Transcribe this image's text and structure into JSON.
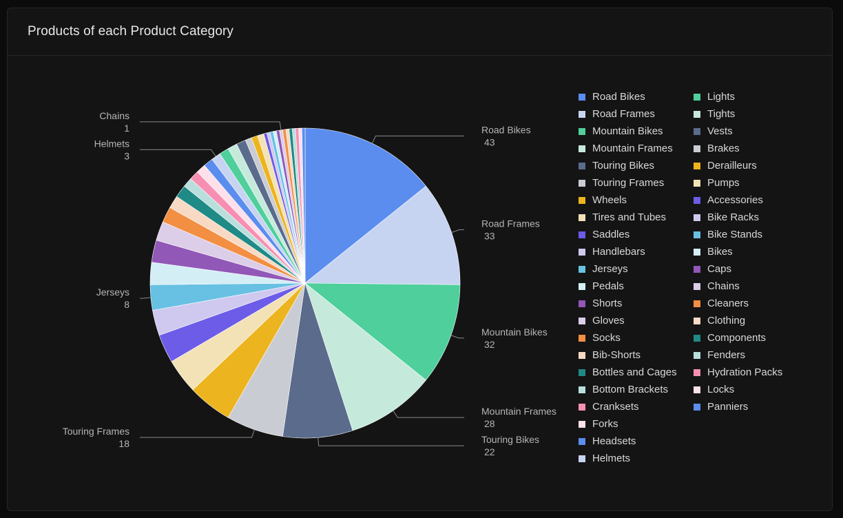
{
  "card": {
    "title": "Products of each Product Category"
  },
  "chart_data": {
    "type": "pie",
    "title": "Products of each Product Category",
    "slices": [
      {
        "label": "Road Bikes",
        "value": 43,
        "color": "#5b8def"
      },
      {
        "label": "Road Frames",
        "value": 33,
        "color": "#c7d4f1"
      },
      {
        "label": "Mountain Bikes",
        "value": 32,
        "color": "#4fcf9c"
      },
      {
        "label": "Mountain Frames",
        "value": 28,
        "color": "#c5eadb"
      },
      {
        "label": "Touring Bikes",
        "value": 22,
        "color": "#5a6b8c"
      },
      {
        "label": "Touring Frames",
        "value": 18,
        "color": "#c9ccd3"
      },
      {
        "label": "Wheels",
        "value": 14,
        "color": "#ecb41f"
      },
      {
        "label": "Tires and Tubes",
        "value": 11,
        "color": "#f2e2b5"
      },
      {
        "label": "Saddles",
        "value": 9,
        "color": "#6c5ce7"
      },
      {
        "label": "Handlebars",
        "value": 8,
        "color": "#cfc9f0"
      },
      {
        "label": "Jerseys",
        "value": 8,
        "color": "#68c1e3"
      },
      {
        "label": "Pedals",
        "value": 7,
        "color": "#d4eef6"
      },
      {
        "label": "Shorts",
        "value": 7,
        "color": "#9158b8"
      },
      {
        "label": "Gloves",
        "value": 6,
        "color": "#dccde8"
      },
      {
        "label": "Socks",
        "value": 5,
        "color": "#f28f43"
      },
      {
        "label": "Bib-Shorts",
        "value": 4,
        "color": "#f7d9c4"
      },
      {
        "label": "Bottles and Cages",
        "value": 4,
        "color": "#1f8a86"
      },
      {
        "label": "Bottom Brackets",
        "value": 3,
        "color": "#b9dfdd"
      },
      {
        "label": "Cranksets",
        "value": 3,
        "color": "#f78fb3"
      },
      {
        "label": "Forks",
        "value": 3,
        "color": "#fde0ea"
      },
      {
        "label": "Headsets",
        "value": 3,
        "color": "#5b8def"
      },
      {
        "label": "Helmets",
        "value": 3,
        "color": "#c7d4f1"
      },
      {
        "label": "Lights",
        "value": 3,
        "color": "#4fcf9c"
      },
      {
        "label": "Tights",
        "value": 3,
        "color": "#c5eadb"
      },
      {
        "label": "Vests",
        "value": 3,
        "color": "#5a6b8c"
      },
      {
        "label": "Brakes",
        "value": 2,
        "color": "#c9ccd3"
      },
      {
        "label": "Derailleurs",
        "value": 2,
        "color": "#ecb41f"
      },
      {
        "label": "Pumps",
        "value": 2,
        "color": "#f2e2b5"
      },
      {
        "label": "Accessories",
        "value": 1,
        "color": "#6c5ce7"
      },
      {
        "label": "Bike Racks",
        "value": 1,
        "color": "#cfc9f0"
      },
      {
        "label": "Bike Stands",
        "value": 1,
        "color": "#68c1e3"
      },
      {
        "label": "Bikes",
        "value": 1,
        "color": "#d4eef6"
      },
      {
        "label": "Caps",
        "value": 1,
        "color": "#9158b8"
      },
      {
        "label": "Chains",
        "value": 1,
        "color": "#dccde8"
      },
      {
        "label": "Cleaners",
        "value": 1,
        "color": "#f28f43"
      },
      {
        "label": "Clothing",
        "value": 1,
        "color": "#f7d9c4"
      },
      {
        "label": "Components",
        "value": 1,
        "color": "#1f8a86"
      },
      {
        "label": "Fenders",
        "value": 1,
        "color": "#b9dfdd"
      },
      {
        "label": "Hydration Packs",
        "value": 1,
        "color": "#f78fb3"
      },
      {
        "label": "Locks",
        "value": 1,
        "color": "#fde0ea"
      },
      {
        "label": "Panniers",
        "value": 1,
        "color": "#5b8def"
      }
    ],
    "labeled_slices": [
      "Road Bikes",
      "Road Frames",
      "Mountain Bikes",
      "Mountain Frames",
      "Touring Bikes",
      "Touring Frames",
      "Jerseys",
      "Helmets",
      "Chains"
    ],
    "legend": "right",
    "start": "top, clockwise"
  }
}
